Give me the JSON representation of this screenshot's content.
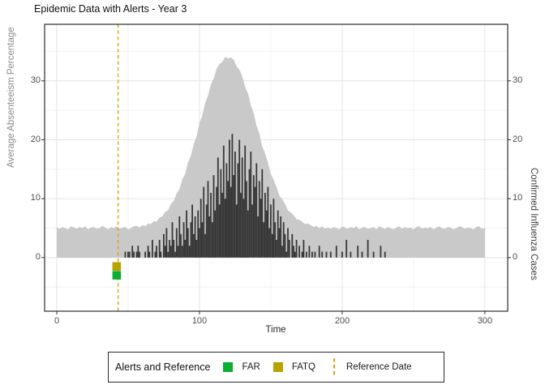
{
  "title": "Epidemic Data with Alerts - Year 3",
  "axes": {
    "left_title": "Average Absenteeism Percentage",
    "right_title": "Confirmed Influenza Cases",
    "x_title": "Time",
    "y_ticks": [
      "30",
      "20",
      "10",
      "0"
    ],
    "x_ticks": [
      "0",
      "100",
      "200",
      "300"
    ]
  },
  "legend": {
    "title": "Alerts and Reference",
    "items": [
      {
        "label": "FAR",
        "type": "square",
        "color": "#0aae32"
      },
      {
        "label": "FATQ",
        "type": "square",
        "color": "#b8a200"
      },
      {
        "label": "Reference Date",
        "type": "dashed-line",
        "color": "#e69f00"
      }
    ]
  },
  "chart_data": {
    "type": "area+bar",
    "title": "Epidemic Data with Alerts - Year 3",
    "xlabel": "Time",
    "ylabel_left": "Average Absenteeism Percentage",
    "ylabel_right": "Confirmed Influenza Cases",
    "xlim": [
      -8.5,
      316
    ],
    "ylim": [
      -9.1,
      39.6
    ],
    "grid": {
      "major_x": [
        0,
        100,
        200,
        300
      ],
      "minor_x": [
        50,
        150,
        250
      ],
      "major_y": [
        0,
        10,
        20,
        30
      ],
      "minor_y": [
        -5,
        5,
        15,
        25,
        35
      ]
    },
    "colors": {
      "area": "#c9c9c9",
      "bars": "#383838",
      "reference_line": "#e69f00",
      "panel_border": "#2b2b2b",
      "grid_major": "#e4e4e4",
      "grid_minor": "#f2f2f2",
      "tick_mark": "#333333"
    },
    "reference_date_x": 43,
    "alerts": [
      {
        "name": "FATQ",
        "x": 42,
        "y": -1.5,
        "color": "#b8a200"
      },
      {
        "name": "FAR",
        "x": 42,
        "y": -3.0,
        "color": "#0aae32"
      }
    ],
    "absenteeism": {
      "axis": "left",
      "t0": 0,
      "step": 2,
      "values": [
        5.1,
        4.9,
        5.2,
        5.0,
        4.8,
        5.3,
        5.1,
        4.9,
        5.2,
        5.0,
        5.3,
        4.8,
        5.1,
        5.2,
        4.9,
        5.0,
        5.4,
        5.1,
        4.8,
        5.2,
        5.0,
        5.3,
        4.9,
        5.1,
        5.2,
        4.8,
        5.0,
        5.3,
        5.4,
        5.1,
        5.5,
        5.3,
        5.8,
        5.7,
        6.2,
        6.1,
        6.8,
        7.0,
        7.8,
        8.0,
        9.1,
        9.6,
        10.9,
        11.6,
        13.3,
        14.2,
        16.1,
        17.3,
        19.3,
        20.6,
        22.8,
        24.1,
        26.3,
        27.5,
        29.4,
        30.4,
        32.0,
        32.9,
        33.2,
        34.1,
        33.8,
        34.0,
        33.6,
        32.5,
        31.9,
        30.8,
        29.0,
        27.9,
        25.9,
        24.5,
        22.4,
        21.0,
        18.9,
        17.7,
        16.1,
        14.2,
        13.2,
        12.0,
        10.5,
        9.9,
        9.1,
        8.0,
        7.7,
        7.2,
        6.5,
        6.4,
        6.1,
        5.7,
        5.8,
        5.5,
        5.2,
        5.4,
        5.0,
        5.3,
        4.9,
        5.1,
        4.9,
        5.2,
        5.0,
        4.8,
        5.3,
        5.1,
        4.9,
        5.2,
        5.0,
        5.3,
        4.8,
        5.1,
        5.2,
        4.9,
        5.0,
        5.2,
        4.8,
        5.3,
        5.1,
        4.9,
        5.2,
        5.0,
        4.8,
        5.1,
        5.3,
        4.9,
        5.2,
        5.0,
        5.1,
        4.8,
        5.2,
        5.3,
        4.9,
        5.1,
        5.0,
        5.2,
        4.8,
        5.1,
        5.3,
        5.0,
        4.9,
        5.2,
        5.1,
        4.8,
        5.0,
        5.3,
        5.2,
        4.9,
        5.1,
        5.0,
        4.8,
        5.2,
        5.3,
        4.9,
        5.0
      ]
    },
    "influenza_cases": {
      "axis": "right",
      "t0": 45,
      "step": 1,
      "values": [
        0,
        0,
        0,
        1,
        0,
        1,
        1,
        0,
        2,
        1,
        0,
        1,
        2,
        1,
        0,
        0,
        0,
        1,
        0,
        2,
        1,
        0,
        3,
        0,
        1,
        2,
        0,
        3,
        1,
        0,
        4,
        2,
        5,
        1,
        3,
        2,
        6,
        3,
        1,
        5,
        2,
        7,
        4,
        2,
        6,
        3,
        8,
        5,
        2,
        6,
        9,
        4,
        7,
        3,
        8,
        5,
        10,
        6,
        12,
        4,
        9,
        13,
        7,
        11,
        6,
        14,
        8,
        12,
        17,
        9,
        15,
        11,
        19,
        10,
        16,
        13,
        20,
        12,
        21,
        14,
        18,
        9,
        16,
        20,
        11,
        17,
        10,
        19,
        13,
        8,
        15,
        18,
        9,
        14,
        12,
        16,
        7,
        13,
        10,
        15,
        6,
        11,
        8,
        12,
        5,
        9,
        4,
        10,
        6,
        3,
        8,
        5,
        7,
        2,
        6,
        4,
        1,
        5,
        3,
        0,
        4,
        2,
        1,
        3,
        0,
        2,
        0,
        1,
        3,
        0,
        1,
        0,
        2,
        0,
        1,
        0,
        1,
        0,
        0,
        2,
        0,
        1,
        0,
        0,
        1,
        0,
        0,
        1,
        0,
        0,
        0,
        2,
        0,
        0,
        0,
        1,
        0,
        0,
        3,
        0,
        0,
        1,
        0,
        0,
        0,
        0,
        2,
        0,
        0,
        1,
        0,
        0,
        0,
        3,
        0,
        0,
        0,
        1,
        0,
        0,
        0,
        0,
        2,
        0,
        0,
        1,
        0,
        0,
        0,
        0,
        0,
        0,
        0,
        0,
        0,
        0
      ]
    }
  }
}
